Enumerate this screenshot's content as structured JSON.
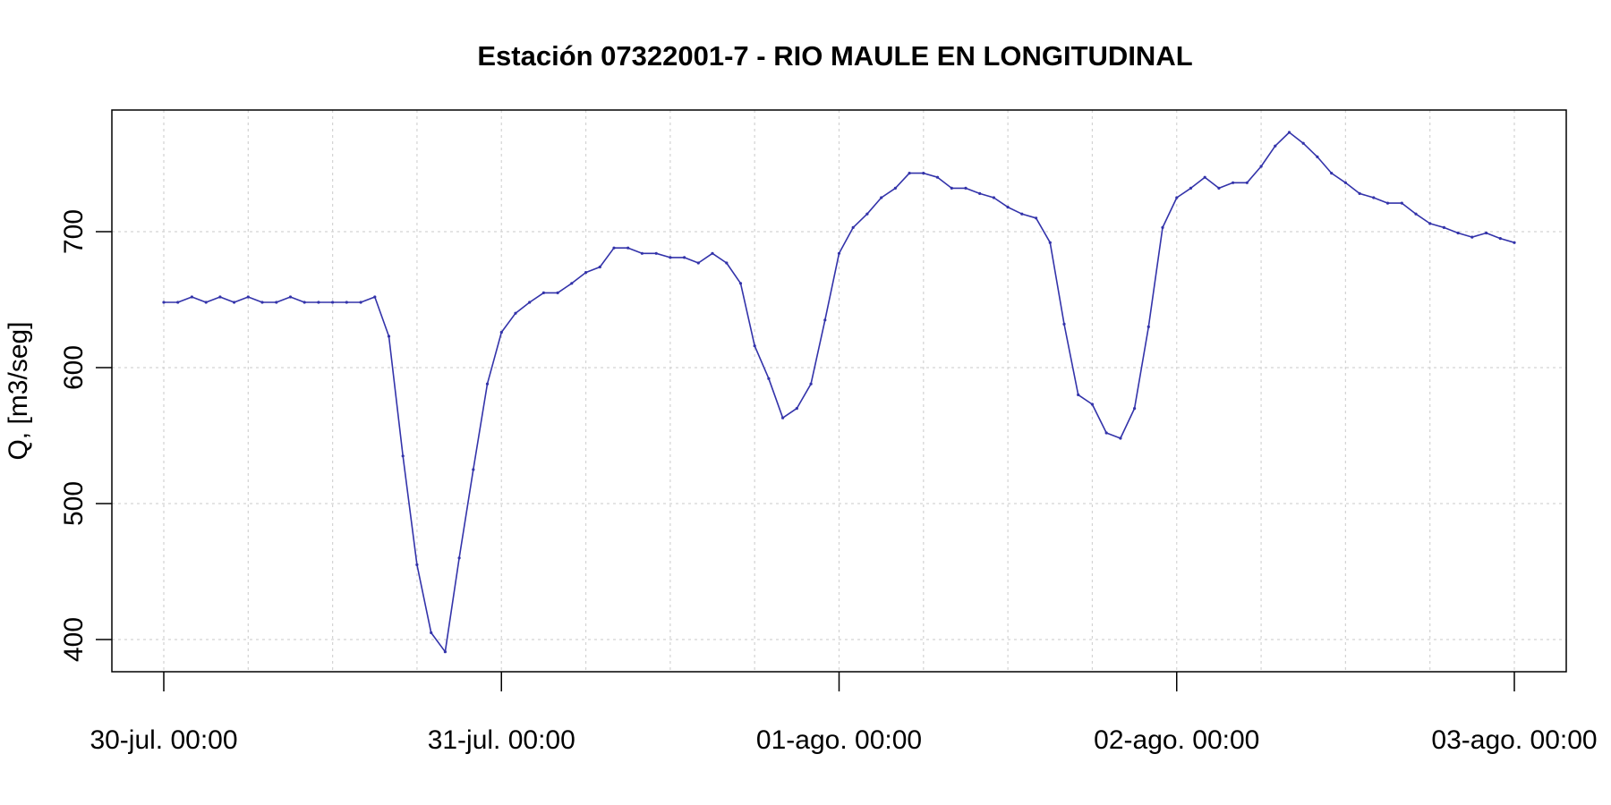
{
  "chart_data": {
    "type": "line",
    "title": "Estación 07322001-7 - RIO MAULE EN LONGITUDINAL",
    "ylabel": "Q, [m3/seg]",
    "xlabel": "",
    "xlim": [
      0,
      96
    ],
    "ylim": [
      376,
      788
    ],
    "x_ticks": [
      {
        "label": "30-jul. 00:00",
        "hour": 0
      },
      {
        "label": "31-jul. 00:00",
        "hour": 24
      },
      {
        "label": "01-ago. 00:00",
        "hour": 48
      },
      {
        "label": "02-ago. 00:00",
        "hour": 72
      },
      {
        "label": "03-ago. 00:00",
        "hour": 96
      }
    ],
    "y_ticks": [
      400,
      500,
      600,
      700
    ],
    "grid": true,
    "series": [
      {
        "color": "#3333aa",
        "hours": [
          0,
          1,
          2,
          3,
          4,
          5,
          6,
          7,
          8,
          9,
          10,
          11,
          12,
          13,
          14,
          15,
          16,
          17,
          18,
          19,
          20,
          21,
          22,
          23,
          24,
          25,
          26,
          27,
          28,
          29,
          30,
          31,
          32,
          33,
          34,
          35,
          36,
          37,
          38,
          39,
          40,
          41,
          42,
          43,
          44,
          45,
          46,
          47,
          48,
          49,
          50,
          51,
          52,
          53,
          54,
          55,
          56,
          57,
          58,
          59,
          60,
          61,
          62,
          63,
          64,
          65,
          66,
          67,
          68,
          69,
          70,
          71,
          72,
          73,
          74,
          75,
          76,
          77,
          78,
          79,
          80,
          81,
          82,
          83,
          84,
          85,
          86,
          87,
          88,
          89,
          90,
          91,
          92,
          93,
          94,
          95,
          96
        ],
        "values": [
          648,
          648,
          652,
          648,
          652,
          648,
          652,
          648,
          648,
          652,
          648,
          648,
          648,
          648,
          648,
          652,
          623,
          535,
          455,
          405,
          391,
          460,
          525,
          588,
          626,
          640,
          648,
          655,
          655,
          662,
          670,
          674,
          688,
          688,
          684,
          684,
          681,
          681,
          677,
          684,
          677,
          662,
          616,
          592,
          563,
          570,
          588,
          635,
          684,
          703,
          713,
          725,
          732,
          743,
          743,
          740,
          732,
          732,
          728,
          725,
          718,
          713,
          710,
          692,
          632,
          580,
          573,
          552,
          548,
          570,
          630,
          703,
          725,
          732,
          740,
          732,
          736,
          736,
          748,
          763,
          773,
          765,
          755,
          743,
          736,
          728,
          725,
          721,
          721,
          713,
          706,
          703,
          699,
          696,
          699,
          695,
          692
        ]
      }
    ]
  }
}
